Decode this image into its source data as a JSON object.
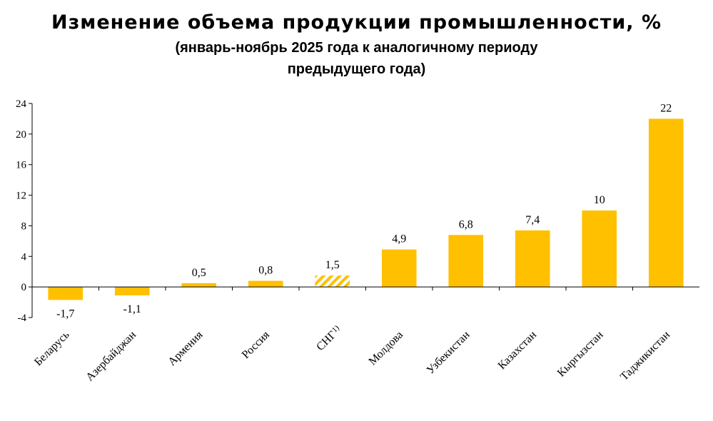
{
  "chart_data": {
    "type": "bar",
    "title": "Изменение объема продукции промышленности, %",
    "subtitle_line1": "(январь-ноябрь 2025 года к аналогичному периоду",
    "subtitle_line2": "предыдущего года)",
    "categories": [
      "Беларусь",
      "Азербайджан",
      "Армения",
      "Россия",
      "СНГ",
      "Молдова",
      "Узбекистан",
      "Казахстан",
      "Кыргызстан",
      "Таджикистан"
    ],
    "values": [
      -1.7,
      -1.1,
      0.5,
      0.8,
      1.5,
      4.9,
      6.8,
      7.4,
      10,
      22
    ],
    "value_labels": [
      "-1,7",
      "-1,1",
      "0,5",
      "0,8",
      "1,5",
      "4,9",
      "6,8",
      "7,4",
      "10",
      "22"
    ],
    "footnote_marker": "1)",
    "footnote_category": "СНГ",
    "highlighted_category": "СНГ",
    "ylim": [
      -4,
      24
    ],
    "yticks": [
      -4,
      0,
      4,
      8,
      12,
      16,
      20,
      24
    ],
    "xlabel": "",
    "ylabel": "",
    "grid": false,
    "legend": "none",
    "bar_color": "#FFC000",
    "highlight_pattern": "diagonal-hatch",
    "highlight_color": "#FFC000"
  }
}
